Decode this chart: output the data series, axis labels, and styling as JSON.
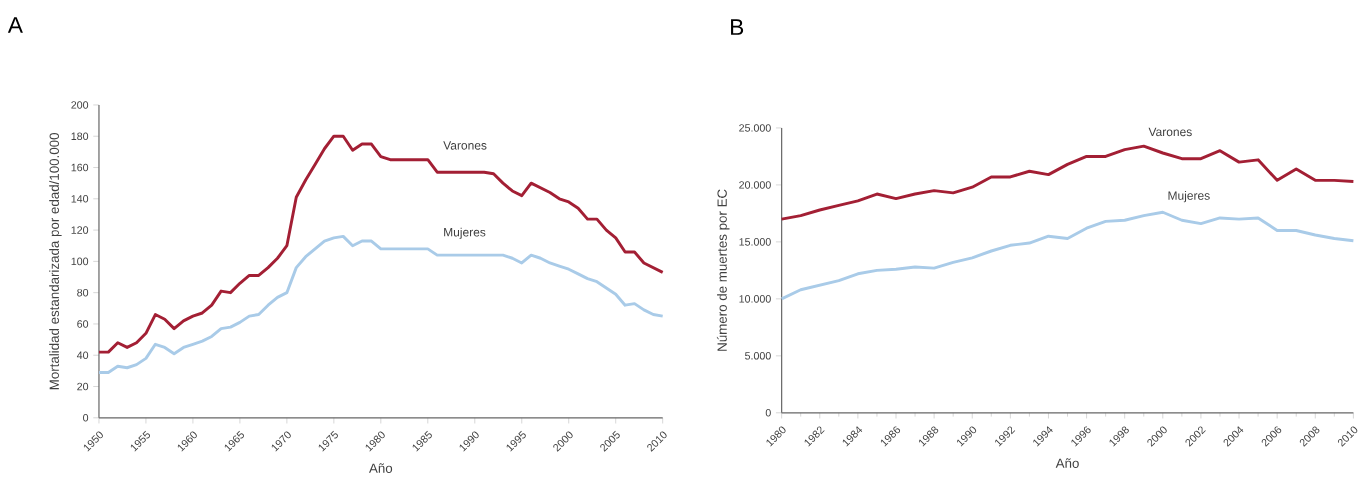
{
  "chart_data": [
    {
      "type": "line",
      "title": "A",
      "xlabel": "Año",
      "ylabel": "Mortalidad estandarizada por edad/100.000",
      "x": [
        1950,
        1951,
        1952,
        1953,
        1954,
        1955,
        1956,
        1957,
        1958,
        1959,
        1960,
        1961,
        1962,
        1963,
        1964,
        1965,
        1966,
        1967,
        1968,
        1969,
        1970,
        1971,
        1972,
        1973,
        1974,
        1975,
        1976,
        1977,
        1978,
        1979,
        1980,
        1981,
        1982,
        1983,
        1984,
        1985,
        1986,
        1987,
        1988,
        1989,
        1990,
        1991,
        1992,
        1993,
        1994,
        1995,
        1996,
        1997,
        1998,
        1999,
        2000,
        2001,
        2002,
        2003,
        2004,
        2005,
        2006,
        2007,
        2008,
        2009,
        2010
      ],
      "series": [
        {
          "name": "Varones",
          "color": "#a31f34",
          "values": [
            42,
            42,
            48,
            45,
            48,
            54,
            66,
            63,
            57,
            62,
            65,
            67,
            72,
            81,
            80,
            86,
            91,
            91,
            96,
            102,
            110,
            141,
            152,
            162,
            172,
            180,
            180,
            171,
            175,
            175,
            167,
            165,
            165,
            165,
            165,
            165,
            157,
            157,
            157,
            157,
            157,
            157,
            156,
            150,
            145,
            142,
            150,
            147,
            144,
            140,
            138,
            134,
            127,
            127,
            120,
            115,
            106,
            106,
            99,
            96,
            93
          ]
        },
        {
          "name": "Mujeres",
          "color": "#a9cbe8",
          "values": [
            29,
            29,
            33,
            32,
            34,
            38,
            47,
            45,
            41,
            45,
            47,
            49,
            52,
            57,
            58,
            61,
            65,
            66,
            72,
            77,
            80,
            96,
            103,
            108,
            113,
            115,
            116,
            110,
            113,
            113,
            108,
            108,
            108,
            108,
            108,
            108,
            104,
            104,
            104,
            104,
            104,
            104,
            104,
            104,
            102,
            99,
            104,
            102,
            99,
            97,
            95,
            92,
            89,
            87,
            83,
            79,
            72,
            73,
            69,
            66,
            65
          ]
        }
      ],
      "xlim": [
        1950,
        2010
      ],
      "ylim": [
        0,
        200
      ],
      "xticks": [
        1950,
        1955,
        1960,
        1965,
        1970,
        1975,
        1980,
        1985,
        1990,
        1995,
        2000,
        2005,
        2010
      ],
      "yticks": [
        0,
        20,
        40,
        60,
        80,
        100,
        120,
        140,
        160,
        180,
        200
      ]
    },
    {
      "type": "line",
      "title": "B",
      "xlabel": "Año",
      "ylabel": "Número de muertes por EC",
      "x": [
        1980,
        1981,
        1982,
        1983,
        1984,
        1985,
        1986,
        1987,
        1988,
        1989,
        1990,
        1991,
        1992,
        1993,
        1994,
        1995,
        1996,
        1997,
        1998,
        1999,
        2000,
        2001,
        2002,
        2003,
        2004,
        2005,
        2006,
        2007,
        2008,
        2009,
        2010
      ],
      "series": [
        {
          "name": "Varones",
          "color": "#a31f34",
          "values": [
            17000,
            17300,
            17800,
            18200,
            18600,
            19200,
            18800,
            19200,
            19500,
            19300,
            19800,
            20700,
            20700,
            21200,
            20900,
            21800,
            22500,
            22500,
            23100,
            23400,
            22800,
            22300,
            22300,
            23000,
            22000,
            22200,
            20400,
            21400,
            20400,
            20400,
            20300
          ]
        },
        {
          "name": "Mujeres",
          "color": "#a9cbe8",
          "values": [
            10000,
            10800,
            11200,
            11600,
            12200,
            12500,
            12600,
            12800,
            12700,
            13200,
            13600,
            14200,
            14700,
            14900,
            15500,
            15300,
            16200,
            16800,
            16900,
            17300,
            17600,
            16900,
            16600,
            17100,
            17000,
            17100,
            16000,
            16000,
            15600,
            15300,
            15100
          ]
        }
      ],
      "xlim": [
        1980,
        2010
      ],
      "ylim": [
        0,
        25000
      ],
      "xticks": [
        1980,
        1982,
        1984,
        1986,
        1988,
        1990,
        1992,
        1994,
        1996,
        1998,
        2000,
        2002,
        2004,
        2006,
        2008,
        2010
      ],
      "yticks": [
        {
          "value": 0,
          "label": "0"
        },
        {
          "value": 5000,
          "label": "5.000"
        },
        {
          "value": 10000,
          "label": "10.000"
        },
        {
          "value": 15000,
          "label": "15.000"
        },
        {
          "value": 20000,
          "label": "20.000"
        },
        {
          "value": 25000,
          "label": "25.000"
        }
      ]
    }
  ]
}
